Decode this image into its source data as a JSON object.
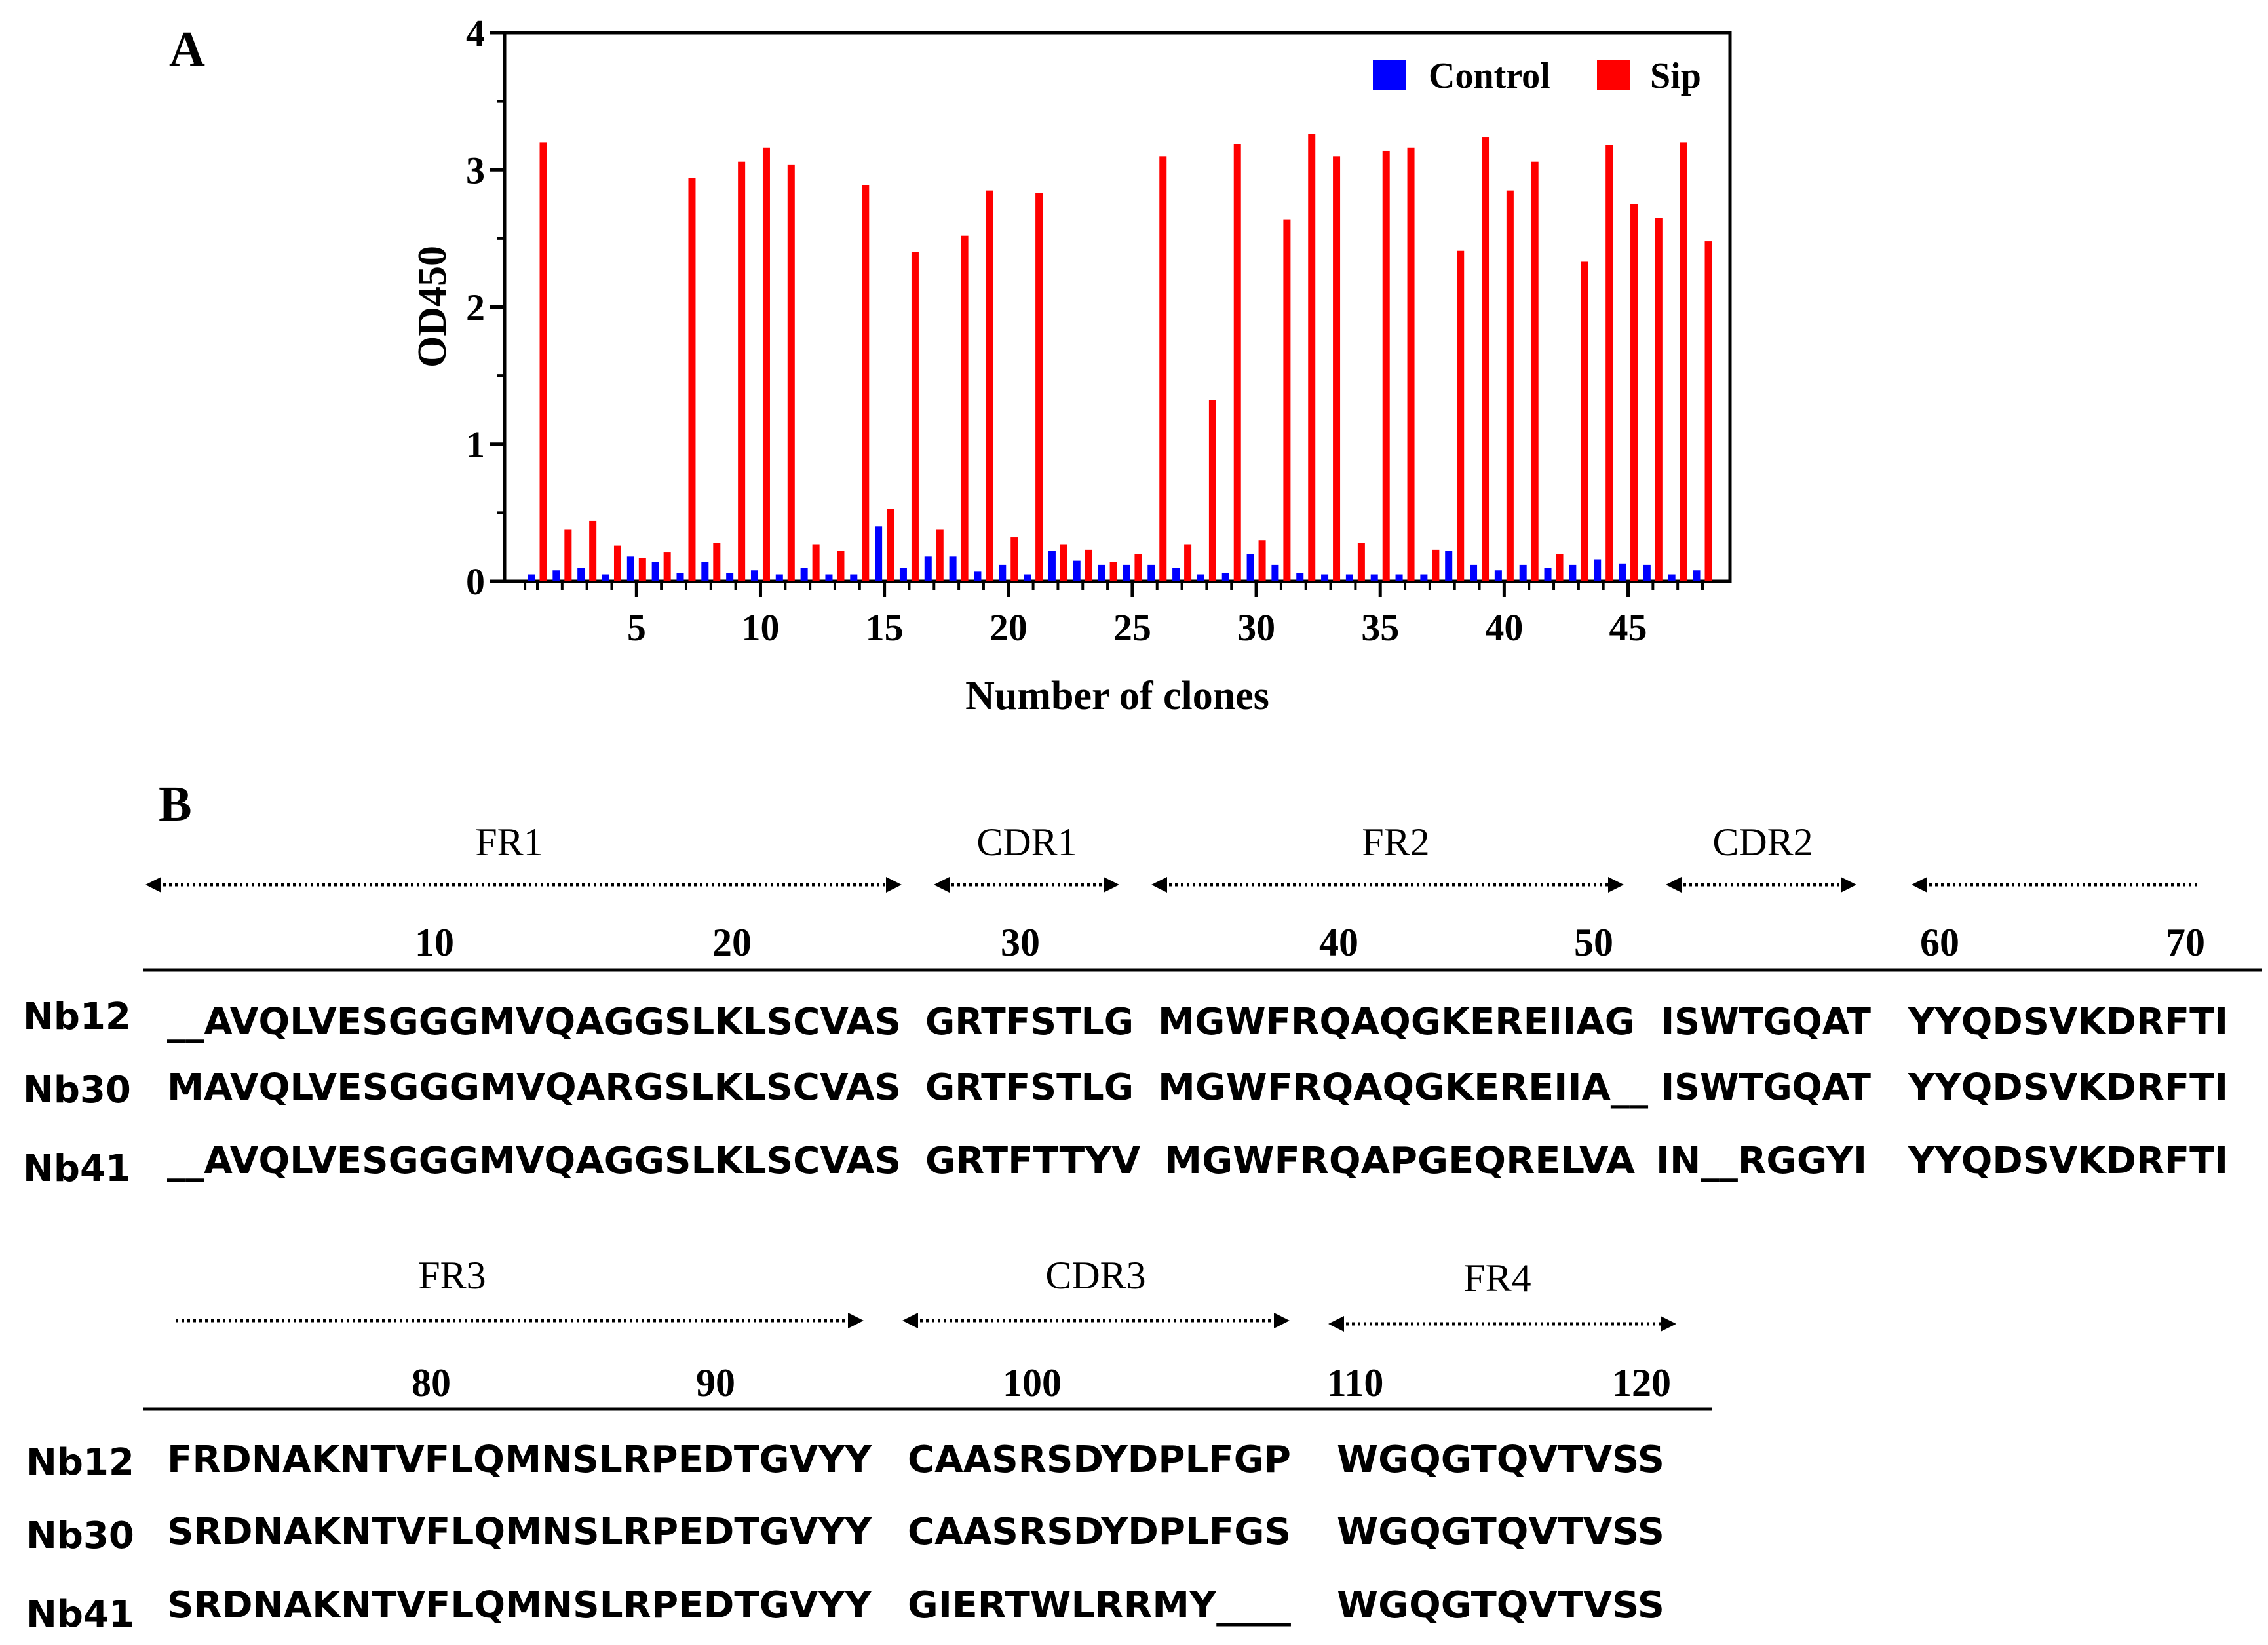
{
  "panel_a": {
    "letter": "A"
  },
  "panel_b": {
    "letter": "B",
    "block1": {
      "regions": [
        "FR1",
        "CDR1",
        "FR2",
        "CDR2"
      ],
      "positions": [
        "10",
        "20",
        "30",
        "40",
        "50",
        "60",
        "70"
      ],
      "rows": [
        {
          "name": "Nb12",
          "segments": [
            "__AVQLVESGGGMVQAGGSLKLSCVAS",
            "GRTFSTLG",
            "MGWFRQAQGKEREIIAG",
            "ISWTGQAT",
            "YYQDSVKDRFTI"
          ]
        },
        {
          "name": "Nb30",
          "segments": [
            "MAVQLVESGGGMVQARGSLKLSCVAS",
            "GRTFSTLG",
            "MGWFRQAQGKEREIIA__",
            "ISWTGQAT",
            "YYQDSVKDRFTI"
          ]
        },
        {
          "name": "Nb41",
          "segments": [
            "__AVQLVESGGGMVQAGGSLKLSCVAS",
            "GRTFTTYV",
            "MGWFRQAPGEQRELVA",
            "IN__RGGYI",
            "YYQDSVKDRFTI"
          ]
        }
      ]
    },
    "block2": {
      "regions": [
        "FR3",
        "CDR3",
        "FR4"
      ],
      "positions": [
        "80",
        "90",
        "100",
        "110",
        "120"
      ],
      "rows": [
        {
          "name": "Nb12",
          "segments": [
            "FRDNAKNTVFLQMNSLRPEDTGVYY",
            "CAASRSDYDPLFGP",
            "WGQGTQVTVSS"
          ]
        },
        {
          "name": "Nb30",
          "segments": [
            "SRDNAKNTVFLQMNSLRPEDTGVYY",
            "CAASRSDYDPLFGS",
            "WGQGTQVTVSS"
          ]
        },
        {
          "name": "Nb41",
          "segments": [
            "SRDNAKNTVFLQMNSLRPEDTGVYY",
            "GIERTWLRRMY____",
            "WGQGTQVTVSS"
          ]
        }
      ]
    }
  },
  "chart_data": {
    "type": "bar",
    "title": "",
    "xlabel": "Number of clones",
    "ylabel": "OD450",
    "ylim": [
      0,
      4
    ],
    "yticks": [
      "0",
      "1",
      "2",
      "3",
      "4"
    ],
    "xticks": [
      "5",
      "10",
      "15",
      "20",
      "25",
      "30",
      "35",
      "40",
      "45"
    ],
    "legend_position": "top-right",
    "categories": [
      1,
      2,
      3,
      4,
      5,
      6,
      7,
      8,
      9,
      10,
      11,
      12,
      13,
      14,
      15,
      16,
      17,
      18,
      19,
      20,
      21,
      22,
      23,
      24,
      25,
      26,
      27,
      28,
      29,
      30,
      31,
      32,
      33,
      34,
      35,
      36,
      37,
      38,
      39,
      40,
      41,
      42,
      43,
      44,
      45,
      46,
      47,
      48
    ],
    "series": [
      {
        "name": "Control",
        "color": "#0000ff",
        "values": [
          0.05,
          0.08,
          0.1,
          0.05,
          0.18,
          0.14,
          0.06,
          0.14,
          0.06,
          0.08,
          0.05,
          0.1,
          0.05,
          0.05,
          0.4,
          0.1,
          0.18,
          0.18,
          0.07,
          0.12,
          0.05,
          0.22,
          0.15,
          0.12,
          0.12,
          0.12,
          0.1,
          0.05,
          0.06,
          0.2,
          0.12,
          0.06,
          0.05,
          0.05,
          0.05,
          0.05,
          0.05,
          0.22,
          0.12,
          0.08,
          0.12,
          0.1,
          0.12,
          0.16,
          0.13,
          0.12,
          0.05,
          0.08
        ]
      },
      {
        "name": "Sip",
        "color": "#ff0000",
        "values": [
          3.2,
          0.38,
          0.44,
          0.26,
          0.17,
          0.21,
          2.94,
          0.28,
          3.06,
          3.16,
          3.04,
          0.27,
          0.22,
          2.89,
          0.53,
          2.4,
          0.38,
          2.52,
          2.85,
          0.32,
          2.83,
          0.27,
          0.23,
          0.14,
          0.2,
          3.1,
          0.27,
          1.32,
          3.19,
          0.3,
          2.64,
          3.26,
          3.1,
          0.28,
          3.14,
          3.16,
          0.23,
          2.41,
          3.24,
          2.85,
          3.06,
          0.2,
          2.33,
          3.18,
          2.75,
          2.65,
          3.2,
          2.48
        ]
      }
    ]
  }
}
